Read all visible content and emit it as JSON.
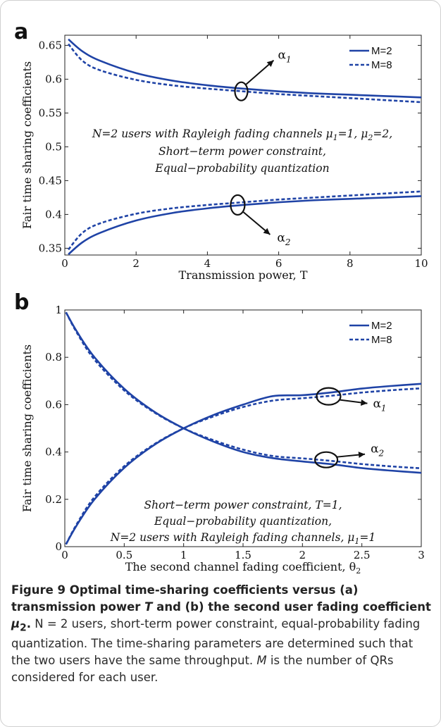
{
  "colors": {
    "series": "#1f43a6",
    "text": "#111111",
    "axis": "#222222"
  },
  "panels": {
    "a": {
      "letter": "a"
    },
    "b": {
      "letter": "b"
    }
  },
  "chart_data": [
    {
      "type": "line",
      "panel": "a",
      "xlabel": "Transmission power, T",
      "ylabel": "Fair time sharing coefficients",
      "xlim": [
        0,
        10
      ],
      "ylim": [
        0.34,
        0.665
      ],
      "xticks": [
        0,
        2,
        4,
        6,
        8,
        10
      ],
      "xtick_labels": [
        "0",
        "2",
        "4",
        "6",
        "8",
        "10"
      ],
      "yticks": [
        0.35,
        0.4,
        0.45,
        0.5,
        0.55,
        0.6,
        0.65
      ],
      "ytick_labels": [
        "0.35",
        "0.4",
        "0.45",
        "0.5",
        "0.55",
        "0.6",
        "0.65"
      ],
      "grid": false,
      "legend": {
        "position": "top-right",
        "entries": [
          "M=2",
          "M=8"
        ]
      },
      "x": [
        0.1,
        0.5,
        1,
        2,
        3,
        4,
        5,
        6,
        7,
        8,
        9,
        10
      ],
      "series": [
        {
          "name": "M=2",
          "style": "solid",
          "values": [
            0.659,
            0.641,
            0.627,
            0.609,
            0.598,
            0.591,
            0.586,
            0.582,
            0.579,
            0.577,
            0.575,
            0.573
          ]
        },
        {
          "name": "M=8",
          "style": "dashed",
          "values": [
            0.652,
            0.627,
            0.613,
            0.599,
            0.591,
            0.586,
            0.582,
            0.578,
            0.575,
            0.572,
            0.569,
            0.566
          ]
        },
        {
          "name": "",
          "style": "solid",
          "values": [
            0.341,
            0.359,
            0.373,
            0.391,
            0.402,
            0.409,
            0.414,
            0.418,
            0.421,
            0.423,
            0.425,
            0.427
          ]
        },
        {
          "name": "",
          "style": "dashed",
          "values": [
            0.348,
            0.373,
            0.387,
            0.401,
            0.409,
            0.414,
            0.418,
            0.422,
            0.425,
            0.428,
            0.431,
            0.434
          ]
        }
      ],
      "annotations": [
        {
          "id": "a1",
          "text": "α",
          "sub": "1",
          "ellipse_at": [
            4.95,
            0.582
          ]
        },
        {
          "id": "a2",
          "text": "α",
          "sub": "2",
          "ellipse_at": [
            4.85,
            0.414
          ]
        }
      ],
      "text_box": [
        "N=2 users with Rayleigh fading channels μ",
        "Short−term power constraint,",
        "Equal−probability quantization"
      ],
      "text_box_line1_parts": [
        "N=2 users with Rayleigh fading channels μ",
        "1",
        "=1, μ",
        "2",
        "=2,"
      ]
    },
    {
      "type": "line",
      "panel": "b",
      "xlabel": "The second channel fading coefficient, θ",
      "xlabel_sub": "2",
      "ylabel": "Fair time sharing coefficients",
      "xlim": [
        0,
        3
      ],
      "ylim": [
        0,
        1
      ],
      "xticks": [
        0,
        0.5,
        1,
        1.5,
        2,
        2.5,
        3
      ],
      "xtick_labels": [
        "0",
        "0.5",
        "1",
        "1.5",
        "2",
        "2.5",
        "3"
      ],
      "yticks": [
        0,
        0.2,
        0.4,
        0.6,
        0.8,
        1
      ],
      "ytick_labels": [
        "0",
        "0.2",
        "0.4",
        "0.6",
        "0.8",
        "1"
      ],
      "grid": false,
      "legend": {
        "position": "top-right",
        "entries": [
          "M=2",
          "M=8"
        ]
      },
      "x": [
        0.01,
        0.1,
        0.25,
        0.5,
        0.75,
        1,
        1.25,
        1.5,
        1.75,
        2,
        2.25,
        2.5,
        2.75,
        3
      ],
      "series": [
        {
          "name": "M=2",
          "style": "solid",
          "values": [
            0.01,
            0.09,
            0.2,
            0.333,
            0.429,
            0.5,
            0.556,
            0.6,
            0.636,
            0.64,
            0.652,
            0.668,
            0.679,
            0.688
          ]
        },
        {
          "name": "M=8",
          "style": "dashed",
          "values": [
            0.01,
            0.095,
            0.21,
            0.34,
            0.432,
            0.5,
            0.55,
            0.59,
            0.617,
            0.627,
            0.638,
            0.651,
            0.661,
            0.669
          ]
        },
        {
          "name": "",
          "style": "solid",
          "values": [
            0.99,
            0.91,
            0.8,
            0.667,
            0.571,
            0.5,
            0.444,
            0.4,
            0.374,
            0.36,
            0.348,
            0.332,
            0.321,
            0.312
          ]
        },
        {
          "name": "",
          "style": "dashed",
          "values": [
            0.99,
            0.905,
            0.79,
            0.66,
            0.568,
            0.5,
            0.45,
            0.41,
            0.383,
            0.373,
            0.362,
            0.349,
            0.339,
            0.331
          ]
        }
      ],
      "annotations": [
        {
          "id": "b1",
          "text": "α",
          "sub": "1",
          "ellipse_at": [
            2.22,
            0.635
          ]
        },
        {
          "id": "b2",
          "text": "α",
          "sub": "2",
          "ellipse_at": [
            2.2,
            0.367
          ]
        }
      ],
      "text_box": [
        "Short−term power constraint, T=1,",
        "Equal−probability quantization,",
        "N=2 users with Rayleigh fading channels, μ"
      ],
      "text_box_line3_parts": [
        "N=2 users with Rayleigh fading channels, μ",
        "1",
        "=1"
      ]
    }
  ],
  "caption": {
    "label": "Figure 9",
    "bold_text": " Optimal time-sharing coefficients versus (a) transmission power ",
    "bold_T": "T",
    "bold_text2": " and (b) the second user fading coefficient ",
    "bold_mu": "μ",
    "bold_mu_sub": "2",
    "bold_end": ".",
    "body_parts": [
      " N = 2 users, short-term power constraint, equal-probability fading quantization. The time-sharing parameters are determined such that the two users have the same throughput. ",
      "M",
      " is the number of QRs considered for each user."
    ]
  }
}
